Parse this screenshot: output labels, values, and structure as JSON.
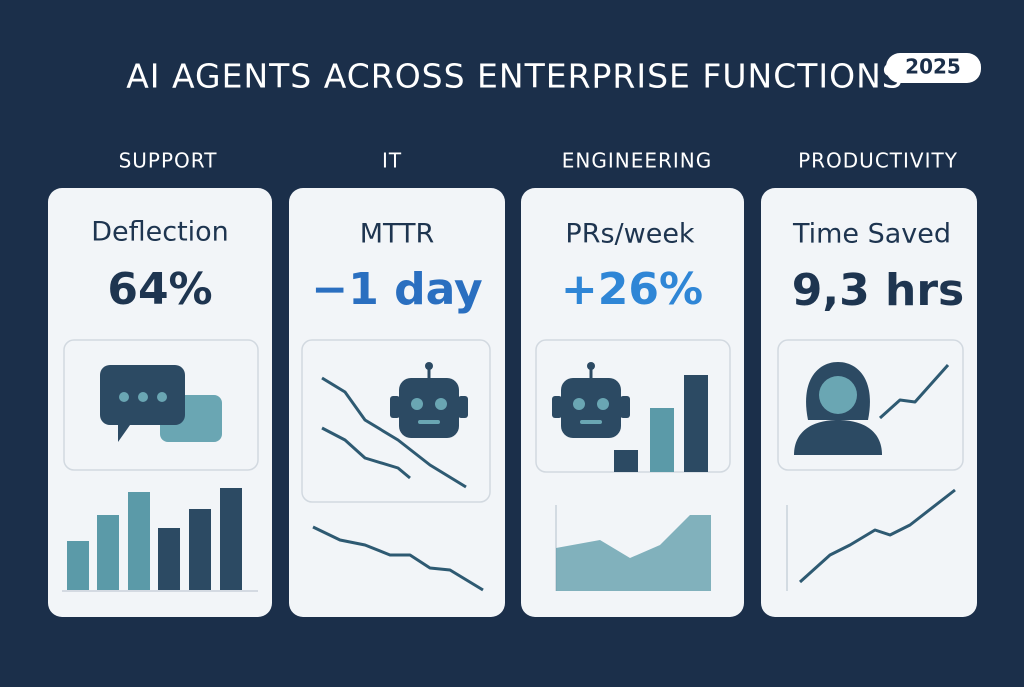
{
  "header": {
    "title": "AI AGENTS ACROSS ENTERPRISE FUNCTIONS",
    "badge": "2025"
  },
  "cards": [
    {
      "category": "SUPPORT",
      "metric": "Deflection",
      "value": "64%"
    },
    {
      "category": "IT",
      "metric": "MTTR",
      "value": "−1 day"
    },
    {
      "category": "ENGINEERING",
      "metric": "PRs/week",
      "value": "+26%"
    },
    {
      "category": "PRODUCTIVITY",
      "metric": "Time Saved",
      "value": "9,3 hrs"
    }
  ]
}
